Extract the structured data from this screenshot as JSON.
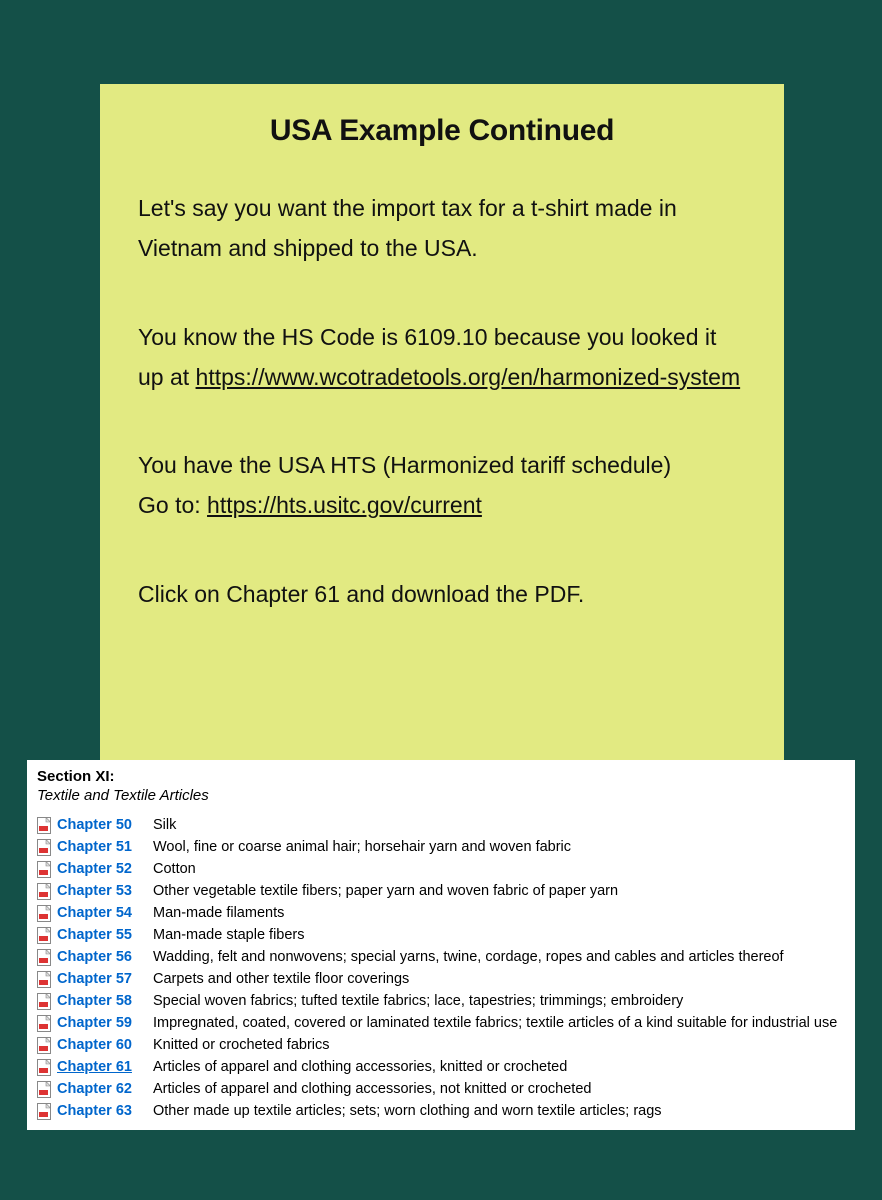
{
  "colors": {
    "page_bg": "#145048",
    "card_bg": "#e2ea82",
    "panel_bg": "#ffffff",
    "text": "#111111",
    "link_blue": "#0066cc",
    "pdf_red": "#d33"
  },
  "slide": {
    "title": "USA Example Continued",
    "p1_a": "Let's say you want the import tax for a t-shirt made in Vietnam and shipped to the USA.",
    "p2_a": "You know the HS Code is 6109.10 because you looked it up at ",
    "p2_link_text": "https://www.wcotradetools.org/en/harmonized-system",
    "p3_a": "You have the USA HTS (Harmonized tariff schedule)",
    "p3_b": "Go to: ",
    "p3_link_text": "https://hts.usitc.gov/current",
    "p4": "Click on Chapter 61 and download the PDF."
  },
  "hts": {
    "section_label": "Section XI:",
    "section_sub": "Textile and Textile Articles",
    "highlight_chapter": "Chapter 61",
    "chapters": [
      {
        "label": "Chapter 50",
        "desc": "Silk"
      },
      {
        "label": "Chapter 51",
        "desc": "Wool, fine or coarse animal hair; horsehair yarn and woven fabric"
      },
      {
        "label": "Chapter 52",
        "desc": "Cotton"
      },
      {
        "label": "Chapter 53",
        "desc": "Other vegetable textile fibers; paper yarn and woven fabric of paper yarn"
      },
      {
        "label": "Chapter 54",
        "desc": "Man-made filaments"
      },
      {
        "label": "Chapter 55",
        "desc": "Man-made staple fibers"
      },
      {
        "label": "Chapter 56",
        "desc": "Wadding, felt and nonwovens; special yarns, twine, cordage, ropes and cables and articles thereof"
      },
      {
        "label": "Chapter 57",
        "desc": "Carpets and other textile floor coverings"
      },
      {
        "label": "Chapter 58",
        "desc": "Special woven fabrics; tufted textile fabrics; lace, tapestries; trimmings; embroidery"
      },
      {
        "label": "Chapter 59",
        "desc": "Impregnated, coated, covered or laminated textile fabrics; textile articles of a kind suitable for industrial use"
      },
      {
        "label": "Chapter 60",
        "desc": "Knitted or crocheted fabrics"
      },
      {
        "label": "Chapter 61",
        "desc": "Articles of apparel and clothing accessories, knitted or crocheted"
      },
      {
        "label": "Chapter 62",
        "desc": "Articles of apparel and clothing accessories, not knitted or crocheted"
      },
      {
        "label": "Chapter 63",
        "desc": "Other made up textile articles; sets; worn clothing and worn textile articles; rags"
      }
    ]
  }
}
